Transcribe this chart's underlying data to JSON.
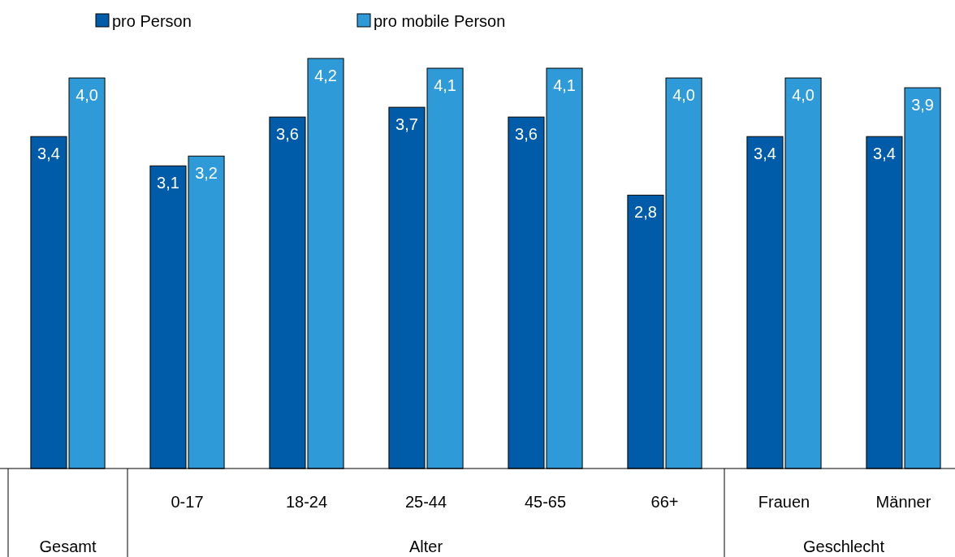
{
  "chart_data": {
    "type": "bar",
    "categories": [
      null,
      "0-17",
      "18-24",
      "25-44",
      "45-65",
      "66+",
      "Frauen",
      "Männer"
    ],
    "series": [
      {
        "name": "pro Person",
        "color": "#005ca8",
        "values": [
          3.4,
          3.1,
          3.6,
          3.7,
          3.6,
          2.8,
          3.4,
          3.4
        ],
        "value_labels": [
          "3,4",
          "3,1",
          "3,6",
          "3,7",
          "3,6",
          "2,8",
          "3,4",
          "3,4"
        ]
      },
      {
        "name": "pro mobile Person",
        "color": "#2e9ad8",
        "values": [
          4.0,
          3.2,
          4.2,
          4.1,
          4.1,
          4.0,
          4.0,
          3.9
        ],
        "value_labels": [
          "4,0",
          "3,2",
          "4,2",
          "4,1",
          "4,1",
          "4,0",
          "4,0",
          "3,9"
        ]
      }
    ],
    "annotations": [
      "Gesamt",
      "Alter",
      "Geschlecht"
    ],
    "legend": "top left"
  }
}
